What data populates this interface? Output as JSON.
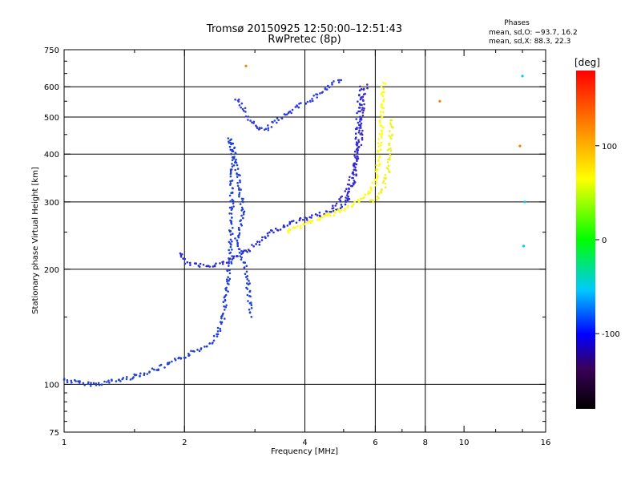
{
  "chart_data": {
    "type": "scatter",
    "title": "Tromsø 20150925 12:50:00–12:51:43",
    "subtitle": "RwPretec (8p)",
    "xlabel": "Frequency [MHz]",
    "ylabel": "Stationary phase Virtual Height [km]",
    "x_scale": "log2",
    "y_scale": "log",
    "xlim": [
      1,
      16
    ],
    "ylim": [
      75,
      750
    ],
    "x_ticks": [
      1,
      2,
      4,
      6,
      8,
      10,
      16
    ],
    "y_ticks": [
      75,
      100,
      200,
      300,
      400,
      500,
      600,
      750
    ],
    "x_grid": [
      2,
      4,
      6,
      8
    ],
    "y_grid": [
      100,
      200,
      300,
      400,
      500,
      600
    ],
    "grid": true,
    "phase_info": {
      "title": "Phases",
      "line1": "mean, sd,O: −93.7, 16.2",
      "line2": "mean, sd,X:  88.3, 22.3"
    },
    "colorbar": {
      "label": "[deg]",
      "min": -180,
      "max": 180,
      "ticks": [
        100,
        0,
        -100
      ]
    },
    "series": [
      {
        "color": "#1f3fd6",
        "points": [
          [
            1.0,
            103
          ],
          [
            1.08,
            101
          ],
          [
            1.2,
            100
          ],
          [
            1.4,
            103
          ],
          [
            1.6,
            107
          ],
          [
            1.8,
            112
          ],
          [
            2.0,
            118
          ],
          [
            2.2,
            124
          ],
          [
            2.35,
            130
          ],
          [
            2.45,
            140
          ],
          [
            2.5,
            150
          ],
          [
            2.55,
            175
          ],
          [
            2.6,
            210
          ],
          [
            2.62,
            260
          ],
          [
            2.63,
            320
          ],
          [
            2.64,
            400
          ],
          [
            2.6,
            440
          ],
          [
            2.7,
            380
          ],
          [
            2.75,
            330
          ],
          [
            2.8,
            280
          ],
          [
            2.7,
            240
          ],
          [
            2.85,
            200
          ],
          [
            2.9,
            170
          ],
          [
            2.95,
            150
          ]
        ]
      },
      {
        "color": "#2a2ad8",
        "points": [
          [
            1.95,
            220
          ],
          [
            2.0,
            210
          ],
          [
            2.1,
            205
          ],
          [
            2.3,
            205
          ],
          [
            2.5,
            207
          ],
          [
            3.0,
            230
          ],
          [
            3.3,
            250
          ],
          [
            3.7,
            265
          ],
          [
            4.2,
            275
          ],
          [
            4.7,
            285
          ],
          [
            5.1,
            300
          ],
          [
            5.3,
            340
          ],
          [
            5.4,
            420
          ],
          [
            5.45,
            520
          ],
          [
            5.5,
            600
          ]
        ]
      },
      {
        "color": "#2d3be0",
        "points": [
          [
            2.7,
            560
          ],
          [
            3.0,
            470
          ],
          [
            3.2,
            460
          ],
          [
            3.3,
            480
          ],
          [
            3.5,
            500
          ],
          [
            3.8,
            530
          ],
          [
            4.2,
            560
          ],
          [
            4.6,
            600
          ],
          [
            5.0,
            630
          ]
        ]
      },
      {
        "color": "#3a2acc",
        "points": [
          [
            4.7,
            290
          ],
          [
            4.9,
            300
          ],
          [
            5.1,
            320
          ],
          [
            5.3,
            360
          ],
          [
            5.5,
            430
          ],
          [
            5.6,
            550
          ],
          [
            5.7,
            610
          ]
        ]
      },
      {
        "color": "#ffff00",
        "points": [
          [
            3.6,
            250
          ],
          [
            3.9,
            260
          ],
          [
            4.3,
            270
          ],
          [
            4.8,
            282
          ],
          [
            5.3,
            295
          ],
          [
            5.7,
            310
          ],
          [
            5.95,
            330
          ],
          [
            6.1,
            380
          ],
          [
            6.2,
            450
          ],
          [
            6.25,
            550
          ],
          [
            6.3,
            620
          ]
        ]
      },
      {
        "color": "#f0f020",
        "points": [
          [
            5.8,
            300
          ],
          [
            6.1,
            310
          ],
          [
            6.3,
            330
          ],
          [
            6.45,
            360
          ],
          [
            6.55,
            430
          ],
          [
            6.6,
            500
          ]
        ]
      },
      {
        "color": "#ff7a00",
        "points": [
          [
            2.85,
            680
          ],
          [
            8.7,
            550
          ],
          [
            13.8,
            420
          ]
        ]
      },
      {
        "color": "#00c8ff",
        "points": [
          [
            14.0,
            640
          ],
          [
            14.2,
            300
          ],
          [
            14.1,
            230
          ]
        ]
      }
    ]
  }
}
